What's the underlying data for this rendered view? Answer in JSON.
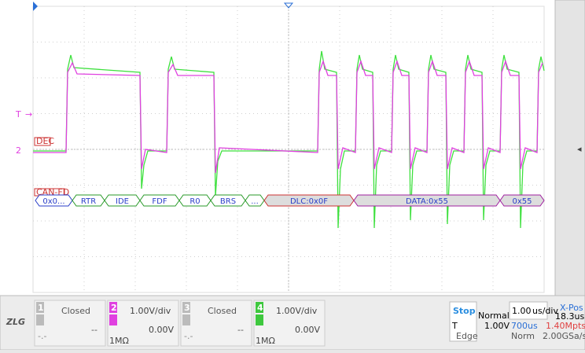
{
  "screen": {
    "trigger_marker": "T",
    "channel_marker": "2",
    "decode_tag": "DEC",
    "protocol_tag": "CAN-FD",
    "decode_fields": [
      "0x0...",
      "RTR",
      "IDE",
      "FDF",
      "R0",
      "BRS",
      "...",
      "DLC:0x0F",
      "DATA:0x55",
      "0x55"
    ]
  },
  "logo": "ZLG",
  "channels": [
    {
      "number": "1",
      "state": "Closed",
      "offset": "--",
      "extra": "-.-"
    },
    {
      "number": "2",
      "scale": "1.00V/div",
      "offset": "0.00V",
      "coupling": "1MΩ"
    },
    {
      "number": "3",
      "state": "Closed",
      "offset": "--",
      "extra": "-.-"
    },
    {
      "number": "4",
      "scale": "1.00V/div",
      "offset": "0.00V",
      "coupling": "1MΩ"
    }
  ],
  "status": {
    "run": "Stop",
    "mode": "Normal",
    "timebase": "1.00",
    "timebase_unit": "us/div",
    "xpos_label": "X-Pos",
    "xpos": "18.3us",
    "trig_label": "T",
    "trig_level": "1.00V",
    "record_time": "700us",
    "memory": "1.40Mpts",
    "trig_type": "Edge",
    "acq": "Norm",
    "sample_rate": "2.00GSa/s"
  }
}
